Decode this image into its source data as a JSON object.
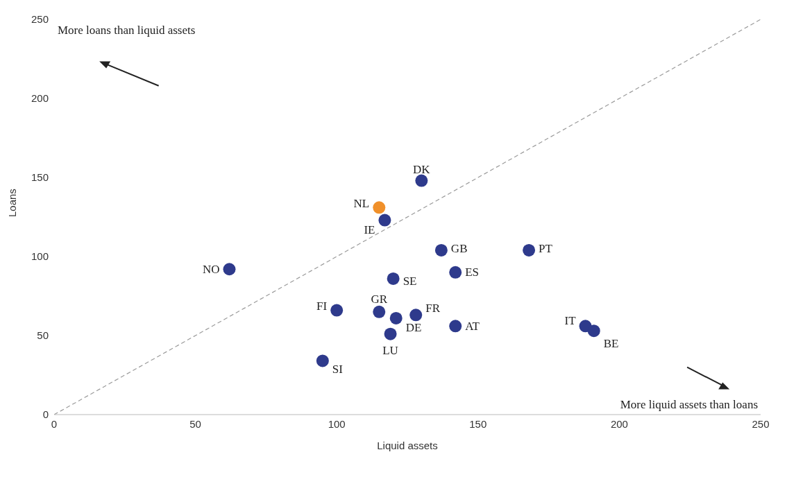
{
  "chart_data": {
    "type": "scatter",
    "xlabel": "Liquid assets",
    "ylabel": "Loans",
    "xlim": [
      0,
      250
    ],
    "ylim": [
      0,
      250
    ],
    "xticks": [
      0,
      50,
      100,
      150,
      200,
      250
    ],
    "yticks": [
      0,
      50,
      100,
      150,
      200,
      250
    ],
    "marker": "circle",
    "annotations": [
      "More loans than liquid assets",
      "More liquid assets than loans"
    ],
    "series": [
      {
        "type": "line",
        "color": "#9a9a9a",
        "line_style": "dashed",
        "marker": "none",
        "x": [
          0,
          250
        ],
        "values": [
          0,
          250
        ]
      },
      {
        "name": "DK",
        "color": "#2e3a8c",
        "x": [
          130
        ],
        "values": [
          148
        ]
      },
      {
        "name": "NL",
        "color": "#f0902a",
        "x": [
          115
        ],
        "values": [
          131
        ]
      },
      {
        "name": "IE",
        "color": "#2e3a8c",
        "x": [
          117
        ],
        "values": [
          123
        ]
      },
      {
        "name": "GB",
        "color": "#2e3a8c",
        "x": [
          137
        ],
        "values": [
          104
        ]
      },
      {
        "name": "PT",
        "color": "#2e3a8c",
        "x": [
          168
        ],
        "values": [
          104
        ]
      },
      {
        "name": "NO",
        "color": "#2e3a8c",
        "x": [
          62
        ],
        "values": [
          92
        ]
      },
      {
        "name": "SE",
        "color": "#2e3a8c",
        "x": [
          120
        ],
        "values": [
          86
        ]
      },
      {
        "name": "ES",
        "color": "#2e3a8c",
        "x": [
          142
        ],
        "values": [
          90
        ]
      },
      {
        "name": "FI",
        "color": "#2e3a8c",
        "x": [
          100
        ],
        "values": [
          66
        ]
      },
      {
        "name": "GR",
        "color": "#2e3a8c",
        "x": [
          115
        ],
        "values": [
          65
        ]
      },
      {
        "name": "FR",
        "color": "#2e3a8c",
        "x": [
          128
        ],
        "values": [
          63
        ]
      },
      {
        "name": "DE",
        "color": "#2e3a8c",
        "x": [
          121
        ],
        "values": [
          61
        ]
      },
      {
        "name": "AT",
        "color": "#2e3a8c",
        "x": [
          142
        ],
        "values": [
          56
        ]
      },
      {
        "name": "LU",
        "color": "#2e3a8c",
        "x": [
          119
        ],
        "values": [
          51
        ]
      },
      {
        "name": "IT",
        "color": "#2e3a8c",
        "x": [
          188
        ],
        "values": [
          56
        ]
      },
      {
        "name": "BE",
        "color": "#2e3a8c",
        "x": [
          191
        ],
        "values": [
          53
        ]
      },
      {
        "name": "SI",
        "color": "#2e3a8c",
        "x": [
          95
        ],
        "values": [
          34
        ]
      }
    ]
  }
}
